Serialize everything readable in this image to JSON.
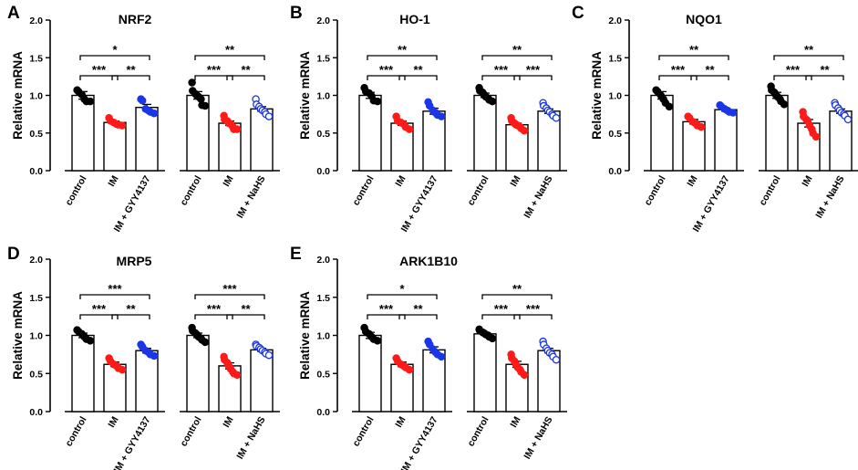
{
  "figure": {
    "background": "#ffffff"
  },
  "colors": {
    "control": "#000000",
    "IM": "#ff1a1a",
    "gyy": "#1a36e6",
    "nahs": "#1a36e6"
  },
  "chart_data": [
    {
      "type": "bar",
      "letter": "A",
      "title": "NRF2",
      "ylabel": "Relative mRNA",
      "ylim": [
        0,
        2.0
      ],
      "yticks": [
        "0.0",
        "0.5",
        "1.0",
        "1.5",
        "2.0"
      ],
      "groups": [
        {
          "categories": [
            "control",
            "IM",
            "IM + GYY4137"
          ],
          "series": [
            {
              "name": "control",
              "mean": 1.0,
              "sem": 0.05,
              "style": "filled-black",
              "points": [
                1.07,
                1.05,
                1.01,
                0.95,
                0.92,
                0.92
              ]
            },
            {
              "name": "IM",
              "mean": 0.64,
              "sem": 0.02,
              "style": "filled-red",
              "points": [
                0.7,
                0.66,
                0.64,
                0.62,
                0.61,
                0.6
              ]
            },
            {
              "name": "IM + GYY4137",
              "mean": 0.84,
              "sem": 0.04,
              "style": "filled-blue",
              "points": [
                0.95,
                0.93,
                0.82,
                0.8,
                0.78,
                0.76
              ]
            }
          ],
          "significance": [
            {
              "from": 0,
              "to": 2,
              "label": "*"
            },
            {
              "from": 0,
              "to": 1,
              "label": "***"
            },
            {
              "from": 1,
              "to": 2,
              "label": "**"
            }
          ]
        },
        {
          "categories": [
            "control",
            "IM",
            "IM + NaHS"
          ],
          "series": [
            {
              "name": "control",
              "mean": 1.0,
              "sem": 0.05,
              "style": "filled-black",
              "points": [
                1.17,
                1.06,
                1.02,
                1.0,
                0.98,
                0.95,
                0.87,
                0.86
              ]
            },
            {
              "name": "IM",
              "mean": 0.63,
              "sem": 0.03,
              "style": "filled-red",
              "points": [
                0.73,
                0.68,
                0.66,
                0.63,
                0.62,
                0.58,
                0.55,
                0.55
              ]
            },
            {
              "name": "IM + NaHS",
              "mean": 0.82,
              "sem": 0.03,
              "style": "open-blue",
              "points": [
                0.95,
                0.88,
                0.85,
                0.82,
                0.8,
                0.78,
                0.75,
                0.72
              ]
            }
          ],
          "significance": [
            {
              "from": 0,
              "to": 2,
              "label": "**"
            },
            {
              "from": 0,
              "to": 1,
              "label": "***"
            },
            {
              "from": 1,
              "to": 2,
              "label": "**"
            }
          ]
        }
      ]
    },
    {
      "type": "bar",
      "letter": "B",
      "title": "HO-1",
      "ylabel": "Relative mRNA",
      "ylim": [
        0,
        2.0
      ],
      "yticks": [
        "0.0",
        "0.5",
        "1.0",
        "1.5",
        "2.0"
      ],
      "groups": [
        {
          "categories": [
            "control",
            "IM",
            "IM + GYY4137"
          ],
          "series": [
            {
              "name": "control",
              "mean": 1.0,
              "sem": 0.04,
              "style": "filled-black",
              "points": [
                1.1,
                1.05,
                1.03,
                0.99,
                0.93,
                0.92
              ]
            },
            {
              "name": "IM",
              "mean": 0.63,
              "sem": 0.03,
              "style": "filled-red",
              "points": [
                0.72,
                0.66,
                0.64,
                0.62,
                0.58,
                0.55
              ]
            },
            {
              "name": "IM + GYY4137",
              "mean": 0.79,
              "sem": 0.04,
              "style": "filled-blue",
              "points": [
                0.91,
                0.86,
                0.8,
                0.77,
                0.74,
                0.72
              ]
            }
          ],
          "significance": [
            {
              "from": 0,
              "to": 2,
              "label": "**"
            },
            {
              "from": 0,
              "to": 1,
              "label": "***"
            },
            {
              "from": 1,
              "to": 2,
              "label": "**"
            }
          ]
        },
        {
          "categories": [
            "control",
            "IM",
            "IM + NaHS"
          ],
          "series": [
            {
              "name": "control",
              "mean": 1.0,
              "sem": 0.03,
              "style": "filled-black",
              "points": [
                1.1,
                1.06,
                1.04,
                1.01,
                0.98,
                0.96,
                0.94,
                0.92
              ]
            },
            {
              "name": "IM",
              "mean": 0.61,
              "sem": 0.02,
              "style": "filled-red",
              "points": [
                0.7,
                0.66,
                0.63,
                0.61,
                0.6,
                0.58,
                0.56,
                0.53
              ]
            },
            {
              "name": "IM + NaHS",
              "mean": 0.79,
              "sem": 0.03,
              "style": "open-blue",
              "points": [
                0.9,
                0.86,
                0.83,
                0.8,
                0.78,
                0.75,
                0.73,
                0.7
              ]
            }
          ],
          "significance": [
            {
              "from": 0,
              "to": 2,
              "label": "**"
            },
            {
              "from": 0,
              "to": 1,
              "label": "***"
            },
            {
              "from": 1,
              "to": 2,
              "label": "***"
            }
          ]
        }
      ]
    },
    {
      "type": "bar",
      "letter": "C",
      "title": "NQO1",
      "ylabel": "Relative mRNA",
      "ylim": [
        0,
        2.0
      ],
      "yticks": [
        "0.0",
        "0.5",
        "1.0",
        "1.5",
        "2.0"
      ],
      "groups": [
        {
          "categories": [
            "control",
            "IM",
            "IM + GYY4137"
          ],
          "series": [
            {
              "name": "control",
              "mean": 1.0,
              "sem": 0.05,
              "style": "filled-black",
              "points": [
                1.07,
                1.05,
                1.0,
                0.95,
                0.9,
                0.85
              ]
            },
            {
              "name": "IM",
              "mean": 0.65,
              "sem": 0.03,
              "style": "filled-red",
              "points": [
                0.72,
                0.7,
                0.65,
                0.63,
                0.6,
                0.58
              ]
            },
            {
              "name": "IM + GYY4137",
              "mean": 0.81,
              "sem": 0.02,
              "style": "filled-blue",
              "points": [
                0.87,
                0.85,
                0.82,
                0.8,
                0.78,
                0.77
              ]
            }
          ],
          "significance": [
            {
              "from": 0,
              "to": 2,
              "label": "**"
            },
            {
              "from": 0,
              "to": 1,
              "label": "***"
            },
            {
              "from": 1,
              "to": 2,
              "label": "**"
            }
          ]
        },
        {
          "categories": [
            "control",
            "IM",
            "IM + NaHS"
          ],
          "series": [
            {
              "name": "control",
              "mean": 1.0,
              "sem": 0.04,
              "style": "filled-black",
              "points": [
                1.12,
                1.07,
                1.04,
                1.01,
                0.98,
                0.95,
                0.92,
                0.88
              ]
            },
            {
              "name": "IM",
              "mean": 0.63,
              "sem": 0.05,
              "style": "filled-red",
              "points": [
                0.78,
                0.72,
                0.68,
                0.66,
                0.6,
                0.55,
                0.5,
                0.45
              ]
            },
            {
              "name": "IM + NaHS",
              "mean": 0.79,
              "sem": 0.03,
              "style": "open-blue",
              "points": [
                0.9,
                0.87,
                0.83,
                0.8,
                0.77,
                0.75,
                0.73,
                0.68
              ]
            }
          ],
          "significance": [
            {
              "from": 0,
              "to": 2,
              "label": "**"
            },
            {
              "from": 0,
              "to": 1,
              "label": "***"
            },
            {
              "from": 1,
              "to": 2,
              "label": "**"
            }
          ]
        }
      ]
    },
    {
      "type": "bar",
      "letter": "D",
      "title": "MRP5",
      "ylabel": "Relative mRNA",
      "ylim": [
        0,
        2.0
      ],
      "yticks": [
        "0.0",
        "0.5",
        "1.0",
        "1.5",
        "2.0"
      ],
      "groups": [
        {
          "categories": [
            "control",
            "IM",
            "IM + GYY4137"
          ],
          "series": [
            {
              "name": "control",
              "mean": 1.0,
              "sem": 0.03,
              "style": "filled-black",
              "points": [
                1.07,
                1.05,
                1.02,
                0.98,
                0.95,
                0.93
              ]
            },
            {
              "name": "IM",
              "mean": 0.62,
              "sem": 0.03,
              "style": "filled-red",
              "points": [
                0.7,
                0.66,
                0.62,
                0.6,
                0.57,
                0.55
              ]
            },
            {
              "name": "IM + GYY4137",
              "mean": 0.8,
              "sem": 0.03,
              "style": "filled-blue",
              "points": [
                0.88,
                0.85,
                0.8,
                0.78,
                0.75,
                0.73
              ]
            }
          ],
          "significance": [
            {
              "from": 0,
              "to": 2,
              "label": "***"
            },
            {
              "from": 0,
              "to": 1,
              "label": "***"
            },
            {
              "from": 1,
              "to": 2,
              "label": "**"
            }
          ]
        },
        {
          "categories": [
            "control",
            "IM",
            "IM + NaHS"
          ],
          "series": [
            {
              "name": "control",
              "mean": 1.0,
              "sem": 0.03,
              "style": "filled-black",
              "points": [
                1.1,
                1.06,
                1.03,
                1.01,
                0.98,
                0.96,
                0.94,
                0.91
              ]
            },
            {
              "name": "IM",
              "mean": 0.6,
              "sem": 0.04,
              "style": "filled-red",
              "points": [
                0.72,
                0.68,
                0.64,
                0.6,
                0.56,
                0.52,
                0.5,
                0.48
              ]
            },
            {
              "name": "IM + NaHS",
              "mean": 0.81,
              "sem": 0.02,
              "style": "open-blue",
              "points": [
                0.88,
                0.86,
                0.84,
                0.82,
                0.8,
                0.78,
                0.76,
                0.74
              ]
            }
          ],
          "significance": [
            {
              "from": 0,
              "to": 2,
              "label": "***"
            },
            {
              "from": 0,
              "to": 1,
              "label": "***"
            },
            {
              "from": 1,
              "to": 2,
              "label": "**"
            }
          ]
        }
      ]
    },
    {
      "type": "bar",
      "letter": "E",
      "title": "ARK1B10",
      "ylabel": "Relative mRNA",
      "ylim": [
        0,
        2.0
      ],
      "yticks": [
        "0.0",
        "0.5",
        "1.0",
        "1.5",
        "2.0"
      ],
      "groups": [
        {
          "categories": [
            "control",
            "IM",
            "IM + GYY4137"
          ],
          "series": [
            {
              "name": "control",
              "mean": 1.0,
              "sem": 0.04,
              "style": "filled-black",
              "points": [
                1.1,
                1.05,
                1.02,
                0.98,
                0.95,
                0.93
              ]
            },
            {
              "name": "IM",
              "mean": 0.62,
              "sem": 0.03,
              "style": "filled-red",
              "points": [
                0.7,
                0.66,
                0.62,
                0.6,
                0.58,
                0.55
              ]
            },
            {
              "name": "IM + GYY4137",
              "mean": 0.81,
              "sem": 0.04,
              "style": "filled-blue",
              "points": [
                0.92,
                0.88,
                0.82,
                0.78,
                0.75,
                0.72
              ]
            }
          ],
          "significance": [
            {
              "from": 0,
              "to": 2,
              "label": "*"
            },
            {
              "from": 0,
              "to": 1,
              "label": "***"
            },
            {
              "from": 1,
              "to": 2,
              "label": "**"
            }
          ]
        },
        {
          "categories": [
            "control",
            "IM",
            "IM + NaHS"
          ],
          "series": [
            {
              "name": "control",
              "mean": 1.02,
              "sem": 0.02,
              "style": "filled-black",
              "points": [
                1.08,
                1.06,
                1.04,
                1.03,
                1.01,
                1.0,
                0.98,
                0.96
              ]
            },
            {
              "name": "IM",
              "mean": 0.62,
              "sem": 0.04,
              "style": "filled-red",
              "points": [
                0.75,
                0.7,
                0.66,
                0.62,
                0.58,
                0.55,
                0.52,
                0.48
              ]
            },
            {
              "name": "IM + NaHS",
              "mean": 0.8,
              "sem": 0.03,
              "style": "open-blue",
              "points": [
                0.92,
                0.88,
                0.83,
                0.8,
                0.77,
                0.75,
                0.72,
                0.68
              ]
            }
          ],
          "significance": [
            {
              "from": 0,
              "to": 2,
              "label": "**"
            },
            {
              "from": 0,
              "to": 1,
              "label": "***"
            },
            {
              "from": 1,
              "to": 2,
              "label": "***"
            }
          ]
        }
      ]
    }
  ]
}
